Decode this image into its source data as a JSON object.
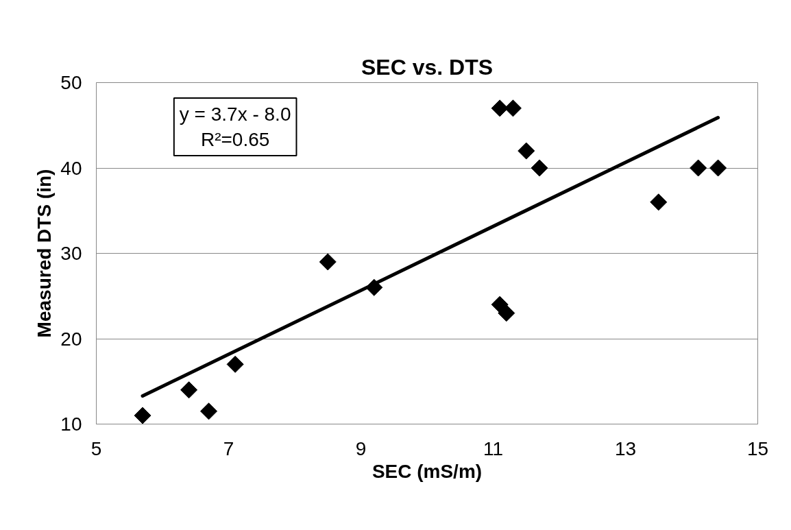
{
  "chart_data": {
    "type": "scatter",
    "title": "SEC vs. DTS",
    "xlabel": "SEC (mS/m)",
    "ylabel": "Measured DTS (in)",
    "x": [
      5.7,
      6.4,
      6.7,
      7.1,
      8.5,
      9.2,
      11.1,
      11.3,
      11.5,
      11.7,
      11.1,
      11.2,
      13.5,
      14.1,
      14.4
    ],
    "series": [
      {
        "color": "#000000",
        "values": [
          11.0,
          14.0,
          11.5,
          17.0,
          29.0,
          26.0,
          47.0,
          47.0,
          42.0,
          40.0,
          24.0,
          23.0,
          36.0,
          40.0,
          40.0
        ]
      },
      {
        "type": "line",
        "marker": "none",
        "color": "#000000",
        "x": [
          5.7,
          14.4
        ],
        "values": [
          13.3,
          45.9
        ]
      }
    ],
    "marker": "diamond",
    "xlim": [
      5,
      15
    ],
    "xticks": [
      5,
      7,
      9,
      11,
      13,
      15
    ],
    "ylim": [
      10,
      50
    ],
    "yticks": [
      10,
      20,
      30,
      40,
      50
    ],
    "grid": "y",
    "annotations": [
      "y = 3.7x - 8.0",
      "R²=0.65"
    ]
  }
}
